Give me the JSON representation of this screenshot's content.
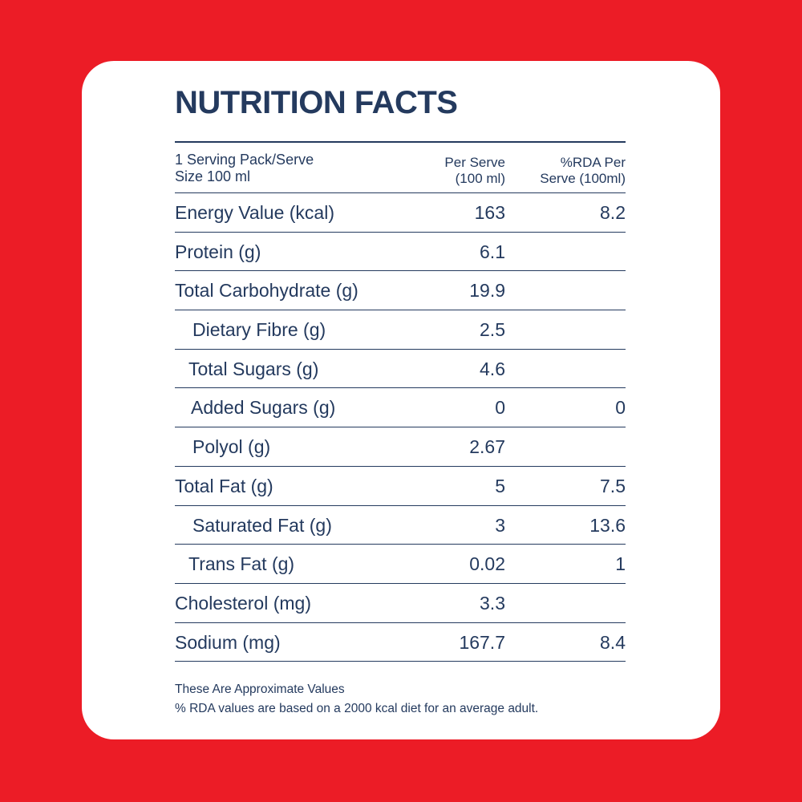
{
  "header": {
    "title": "NUTRITION FACTS"
  },
  "table": {
    "columns": {
      "serving": [
        "1 Serving Pack/Serve",
        "Size 100 ml"
      ],
      "per_serve": [
        "Per Serve",
        "(100 ml)"
      ],
      "rda": [
        "%RDA Per",
        "Serve (100ml)"
      ]
    },
    "rows": [
      {
        "nutrient": "Energy Value (kcal)",
        "per_serve": 163,
        "rda": 8.2
      },
      {
        "nutrient": "Protein (g)",
        "per_serve": 6.1
      },
      {
        "nutrient": "Total Carbohydrate (g)",
        "per_serve": 19.9
      },
      {
        "nutrient": "Dietary Fibre (g)",
        "per_serve": 2.5
      },
      {
        "nutrient": "Total Sugars (g)",
        "per_serve": 4.6
      },
      {
        "nutrient": "Added Sugars (g)",
        "per_serve": 0,
        "rda": 0
      },
      {
        "nutrient": "Polyol (g)",
        "per_serve": 2.67
      },
      {
        "nutrient": "Total Fat (g)",
        "per_serve": 5,
        "rda": 7.5
      },
      {
        "nutrient": "Saturated Fat (g)",
        "per_serve": 3,
        "rda": 13.6
      },
      {
        "nutrient": "Trans Fat (g)",
        "per_serve": 0.02,
        "rda": 1
      },
      {
        "nutrient": "Cholesterol (mg)",
        "per_serve": 3.3
      },
      {
        "nutrient": "Sodium (mg)",
        "per_serve": 167.7,
        "rda": 8.4
      }
    ]
  },
  "footer": {
    "notes": [
      "These Are Approximate Values",
      "% RDA values are based on a 2000 kcal diet for an average adult."
    ]
  }
}
